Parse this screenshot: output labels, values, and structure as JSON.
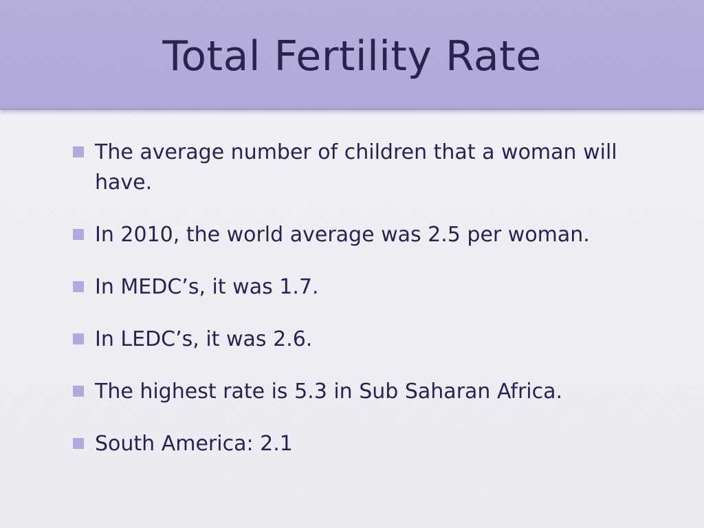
{
  "slide": {
    "title": "Total Fertility Rate",
    "bullets": [
      "The average number of children that a woman will have.",
      "In 2010, the world average was 2.5 per woman.",
      "In MEDC’s, it was 1.7.",
      "In LEDC’s, it was 2.6.",
      "The highest rate is 5.3 in Sub Saharan Africa.",
      "South America: 2.1"
    ]
  },
  "colors": {
    "title_band": "#b3a9db",
    "text": "#2b2252",
    "bullet_marker": "#b4a9de",
    "background": "#eeedf3"
  }
}
